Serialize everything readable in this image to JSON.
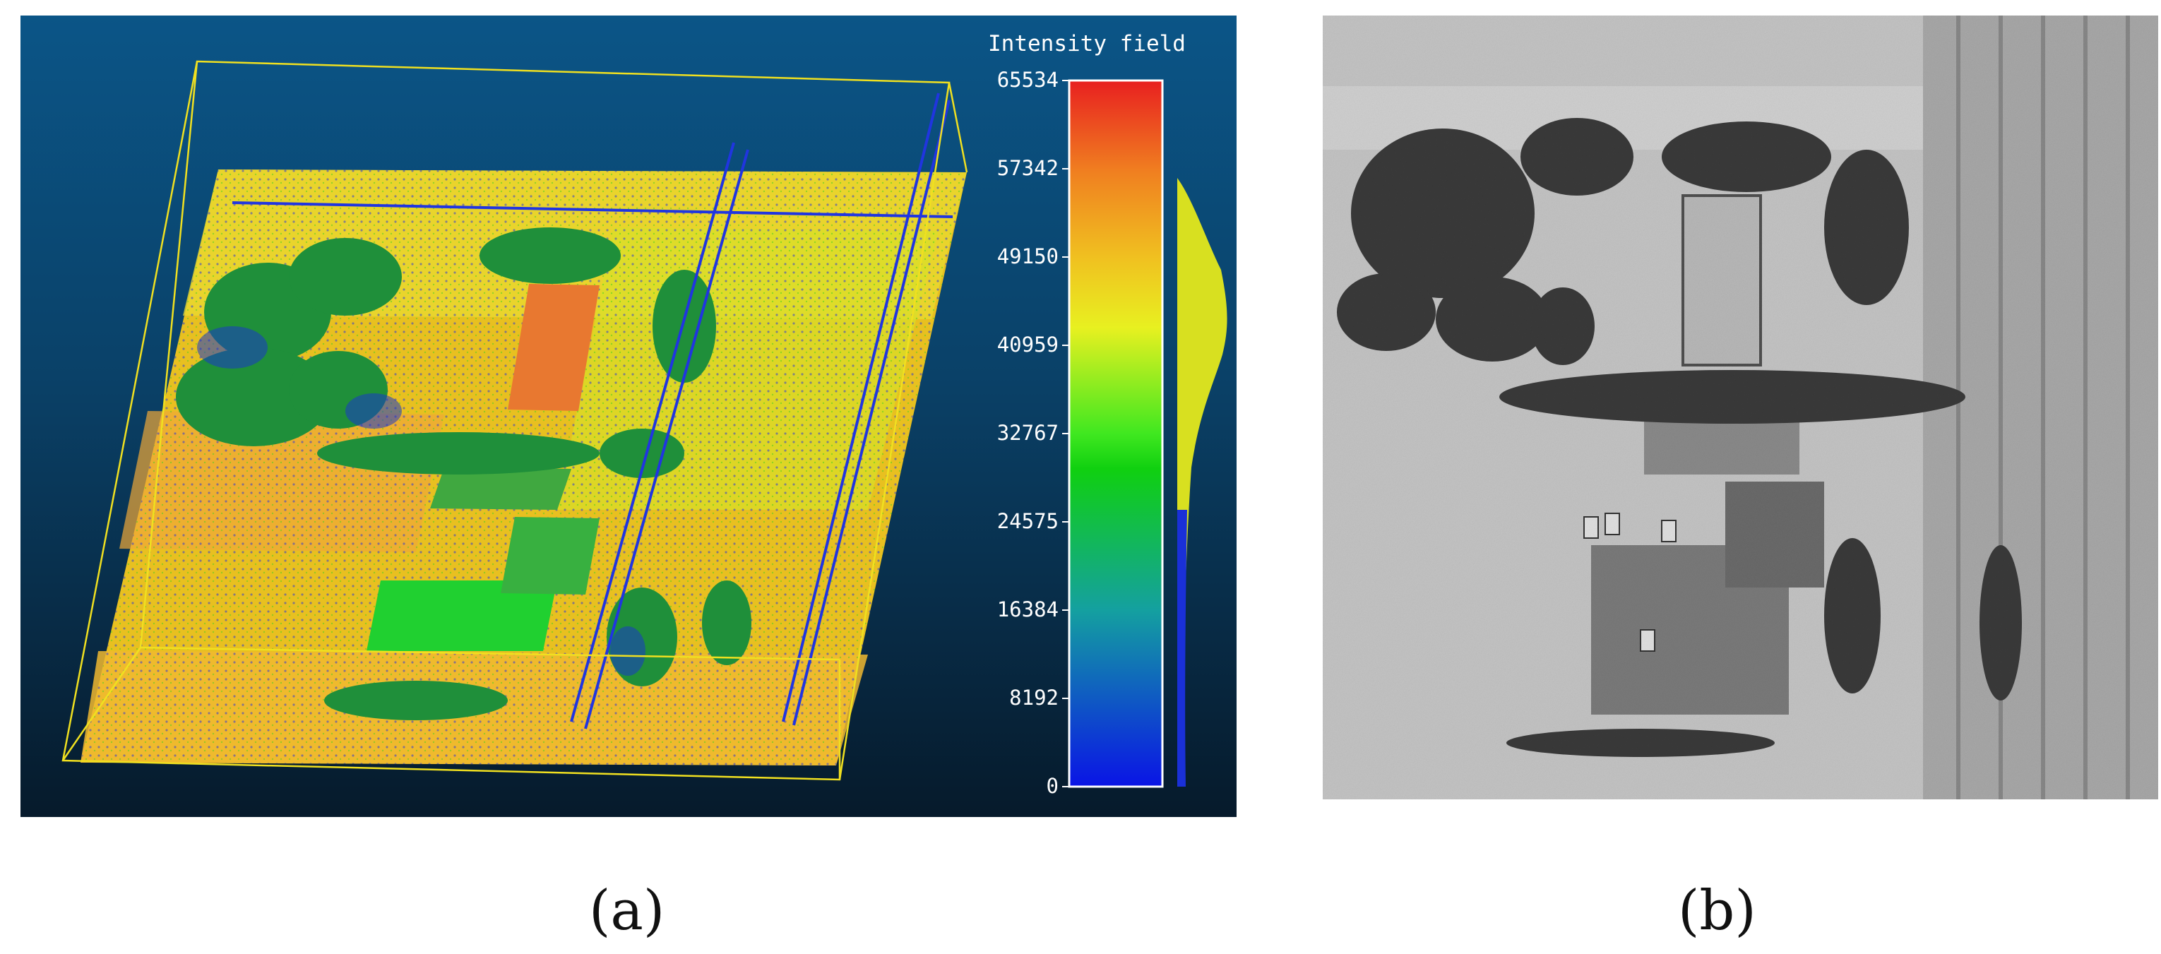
{
  "panel_a": {
    "caption": "(a)",
    "colorbar": {
      "title": "Intensity field",
      "colors": [
        "#0a14e6",
        "#14a0a0",
        "#10d010",
        "#40e820",
        "#e8f020",
        "#f0c020",
        "#f08020",
        "#e82020"
      ],
      "ticks": [
        {
          "label": "65534",
          "value": 65534
        },
        {
          "label": "57342",
          "value": 57342
        },
        {
          "label": "49150",
          "value": 49150
        },
        {
          "label": "40959",
          "value": 40959
        },
        {
          "label": "32767",
          "value": 32767
        },
        {
          "label": "24575",
          "value": 24575
        },
        {
          "label": "16384",
          "value": 16384
        },
        {
          "label": "8192",
          "value": 8192
        },
        {
          "label": "0",
          "value": 0
        }
      ]
    }
  },
  "panel_b": {
    "caption": "(b)"
  }
}
